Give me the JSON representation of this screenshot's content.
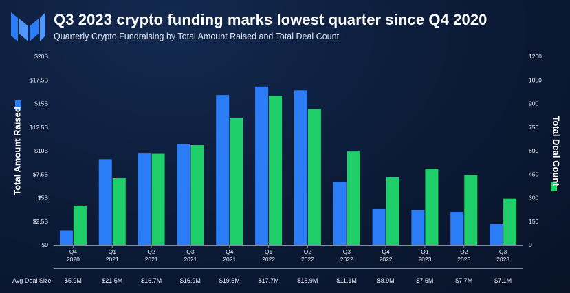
{
  "header": {
    "title": "Q3 2023 crypto funding marks lowest quarter since Q4 2020",
    "subtitle": "Quarterly Crypto Fundraising by Total Amount Raised and Total Deal Count",
    "logo": "messari-logo"
  },
  "footer": {
    "avg_deal_label": "Avg Deal Size:"
  },
  "colors": {
    "amount_bar": "#2a7cf7",
    "deal_bar": "#1fcf6a",
    "background": "#0b1a36"
  },
  "chart_data": {
    "type": "bar",
    "title": "Q3 2023 crypto funding marks lowest quarter since Q4 2020",
    "categories": [
      [
        "Q4",
        "2020"
      ],
      [
        "Q1",
        "2021"
      ],
      [
        "Q2",
        "2021"
      ],
      [
        "Q3",
        "2021"
      ],
      [
        "Q4",
        "2021"
      ],
      [
        "Q1",
        "2022"
      ],
      [
        "Q2",
        "2022"
      ],
      [
        "Q3",
        "2022"
      ],
      [
        "Q4",
        "2022"
      ],
      [
        "Q1",
        "2023"
      ],
      [
        "Q2",
        "2023"
      ],
      [
        "Q3",
        "2023"
      ]
    ],
    "series": [
      {
        "name": "Total Amount Raised",
        "axis": "left",
        "unit": "$B",
        "values": [
          1.5,
          9.1,
          9.7,
          10.7,
          15.9,
          16.8,
          16.4,
          6.7,
          3.8,
          3.7,
          3.5,
          2.2
        ]
      },
      {
        "name": "Total Deal Count",
        "axis": "right",
        "values": [
          250,
          425,
          580,
          635,
          810,
          950,
          865,
          595,
          430,
          485,
          445,
          295
        ]
      }
    ],
    "ylabel_left": "Total Amount Raised",
    "ylabel_right": "Total Deal Count",
    "ylim_left": [
      0,
      20
    ],
    "ylim_right": [
      0,
      1200
    ],
    "yticks_left": [
      "$0",
      "$2.5B",
      "$5B",
      "$7.5B",
      "$10B",
      "$12.5B",
      "$15B",
      "$17.5B",
      "$20B"
    ],
    "yticks_right": [
      "0",
      "150",
      "300",
      "450",
      "600",
      "750",
      "900",
      "1050",
      "1200"
    ],
    "avg_deal_size": [
      "$5.9M",
      "$21.5M",
      "$16.7M",
      "$16.9M",
      "$19.5M",
      "$17.7M",
      "$18.9M",
      "$11.1M",
      "$8.9M",
      "$7.5M",
      "$7.7M",
      "$7.1M"
    ],
    "grid": false,
    "legend": "axis-side swatches"
  }
}
